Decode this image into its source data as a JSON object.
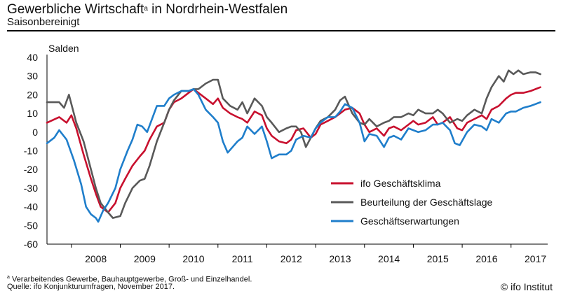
{
  "header": {
    "title": "Gewerbliche Wirtschaft",
    "title_marker": "a",
    "title_suffix": " in Nordrhein-Westfalen",
    "subtitle": "Saisonbereinigt"
  },
  "footer": {
    "footnote_marker": "a",
    "footnote": " Verarbeitendes Gewerbe, Bauhauptgewerbe, Groß- und Einzelhandel.",
    "source": "Quelle: ifo Konjunkturumfragen, November 2017.",
    "copyright": "© ifo Institut"
  },
  "chart_data": {
    "type": "line",
    "ylabel": "Salden",
    "ylim": [
      -60,
      40
    ],
    "yticks": [
      40,
      30,
      20,
      10,
      0,
      -10,
      -20,
      -30,
      -40,
      -50,
      -60
    ],
    "xlim": [
      2007.5,
      2017.75
    ],
    "xticks": [
      "2008",
      "2009",
      "2010",
      "2011",
      "2012",
      "2013",
      "2014",
      "2015",
      "2016",
      "2017"
    ],
    "grid": false,
    "legend_position": "lower-right",
    "series": [
      {
        "name": "ifo Geschäftsklima",
        "color": "#c8102e",
        "x": [
          2007.5,
          2007.75,
          2007.9,
          2008.0,
          2008.1,
          2008.25,
          2008.4,
          2008.5,
          2008.6,
          2008.75,
          2008.9,
          2009.0,
          2009.1,
          2009.25,
          2009.4,
          2009.5,
          2009.6,
          2009.75,
          2009.9,
          2010.0,
          2010.1,
          2010.25,
          2010.4,
          2010.5,
          2010.6,
          2010.75,
          2010.9,
          2011.0,
          2011.1,
          2011.25,
          2011.4,
          2011.5,
          2011.6,
          2011.75,
          2011.9,
          2012.0,
          2012.1,
          2012.25,
          2012.4,
          2012.5,
          2012.6,
          2012.75,
          2012.9,
          2013.0,
          2013.1,
          2013.25,
          2013.4,
          2013.5,
          2013.6,
          2013.75,
          2013.9,
          2014.0,
          2014.1,
          2014.25,
          2014.4,
          2014.5,
          2014.6,
          2014.75,
          2014.9,
          2015.0,
          2015.1,
          2015.25,
          2015.4,
          2015.5,
          2015.6,
          2015.75,
          2015.9,
          2016.0,
          2016.1,
          2016.25,
          2016.4,
          2016.5,
          2016.6,
          2016.75,
          2016.9,
          2017.0,
          2017.1,
          2017.25,
          2017.4,
          2017.5,
          2017.6
        ],
        "values": [
          5,
          8,
          5,
          9,
          2,
          -12,
          -25,
          -33,
          -40,
          -43,
          -38,
          -30,
          -25,
          -18,
          -13,
          -10,
          -4,
          3,
          5,
          12,
          16,
          18,
          21,
          23,
          21,
          18,
          15,
          18,
          13,
          10,
          8,
          7,
          5,
          11,
          9,
          2,
          -2,
          -5,
          -6,
          -4,
          1,
          2,
          -3,
          -1,
          4,
          6,
          8,
          10,
          12,
          13,
          10,
          4,
          0,
          2,
          -2,
          2,
          3,
          1,
          4,
          6,
          4,
          5,
          8,
          4,
          5,
          8,
          2,
          1,
          5,
          7,
          9,
          7,
          12,
          14,
          18,
          20,
          21,
          21,
          22,
          23,
          24
        ]
      },
      {
        "name": "Beurteilung der Geschäftslage",
        "color": "#595959",
        "x": [
          2007.5,
          2007.75,
          2007.85,
          2007.95,
          2008.1,
          2008.25,
          2008.4,
          2008.5,
          2008.6,
          2008.75,
          2008.85,
          2009.0,
          2009.1,
          2009.25,
          2009.4,
          2009.5,
          2009.6,
          2009.75,
          2009.9,
          2010.0,
          2010.1,
          2010.25,
          2010.4,
          2010.5,
          2010.6,
          2010.75,
          2010.9,
          2011.0,
          2011.1,
          2011.25,
          2011.4,
          2011.5,
          2011.6,
          2011.75,
          2011.9,
          2012.0,
          2012.1,
          2012.25,
          2012.4,
          2012.5,
          2012.6,
          2012.7,
          2012.8,
          2012.9,
          2013.0,
          2013.1,
          2013.25,
          2013.4,
          2013.5,
          2013.6,
          2013.75,
          2013.9,
          2014.0,
          2014.1,
          2014.25,
          2014.4,
          2014.5,
          2014.6,
          2014.75,
          2014.9,
          2015.0,
          2015.1,
          2015.25,
          2015.4,
          2015.5,
          2015.6,
          2015.75,
          2015.9,
          2016.0,
          2016.1,
          2016.25,
          2016.4,
          2016.5,
          2016.6,
          2016.75,
          2016.85,
          2016.95,
          2017.05,
          2017.15,
          2017.25,
          2017.4,
          2017.5,
          2017.6
        ],
        "values": [
          16,
          16,
          13,
          20,
          5,
          -5,
          -20,
          -30,
          -38,
          -43,
          -46,
          -45,
          -38,
          -30,
          -26,
          -25,
          -18,
          -5,
          5,
          12,
          17,
          22,
          22,
          23,
          23,
          26,
          28,
          28,
          18,
          14,
          12,
          16,
          10,
          18,
          14,
          8,
          5,
          0,
          2,
          3,
          3,
          0,
          -8,
          -3,
          2,
          6,
          8,
          12,
          17,
          19,
          10,
          5,
          4,
          7,
          3,
          5,
          6,
          8,
          8,
          10,
          9,
          12,
          10,
          10,
          12,
          10,
          5,
          7,
          6,
          9,
          12,
          10,
          18,
          24,
          30,
          27,
          33,
          31,
          33,
          31,
          32,
          32,
          31
        ]
      },
      {
        "name": "Geschäftserwartungen",
        "color": "#1f7ecb",
        "x": [
          2007.5,
          2007.65,
          2007.75,
          2007.9,
          2008.05,
          2008.2,
          2008.3,
          2008.4,
          2008.5,
          2008.55,
          2008.65,
          2008.75,
          2008.9,
          2009.0,
          2009.15,
          2009.25,
          2009.35,
          2009.45,
          2009.55,
          2009.65,
          2009.75,
          2009.9,
          2010.0,
          2010.1,
          2010.25,
          2010.4,
          2010.5,
          2010.6,
          2010.75,
          2010.9,
          2011.0,
          2011.1,
          2011.2,
          2011.3,
          2011.4,
          2011.5,
          2011.6,
          2011.75,
          2011.9,
          2012.0,
          2012.1,
          2012.25,
          2012.4,
          2012.5,
          2012.6,
          2012.75,
          2012.9,
          2013.0,
          2013.1,
          2013.25,
          2013.4,
          2013.5,
          2013.6,
          2013.75,
          2013.9,
          2014.0,
          2014.1,
          2014.25,
          2014.4,
          2014.5,
          2014.6,
          2014.75,
          2014.9,
          2015.0,
          2015.1,
          2015.25,
          2015.4,
          2015.5,
          2015.6,
          2015.75,
          2015.85,
          2015.95,
          2016.1,
          2016.25,
          2016.4,
          2016.5,
          2016.6,
          2016.75,
          2016.9,
          2017.0,
          2017.1,
          2017.25,
          2017.4,
          2017.6
        ],
        "values": [
          -6,
          -3,
          1,
          -4,
          -15,
          -28,
          -40,
          -44,
          -46,
          -48,
          -42,
          -38,
          -30,
          -20,
          -10,
          -4,
          4,
          3,
          0,
          7,
          14,
          14,
          18,
          20,
          22,
          22,
          23,
          20,
          12,
          8,
          5,
          -5,
          -11,
          -8,
          -5,
          -3,
          3,
          -1,
          3,
          -5,
          -14,
          -12,
          -12,
          -10,
          -4,
          -2,
          -3,
          2,
          5,
          8,
          8,
          11,
          15,
          13,
          5,
          -5,
          -1,
          -2,
          -8,
          -3,
          -2,
          -4,
          2,
          1,
          0,
          1,
          4,
          4,
          5,
          1,
          -6,
          -7,
          0,
          4,
          3,
          1,
          7,
          5,
          10,
          11,
          11,
          13,
          14,
          16
        ]
      }
    ]
  }
}
